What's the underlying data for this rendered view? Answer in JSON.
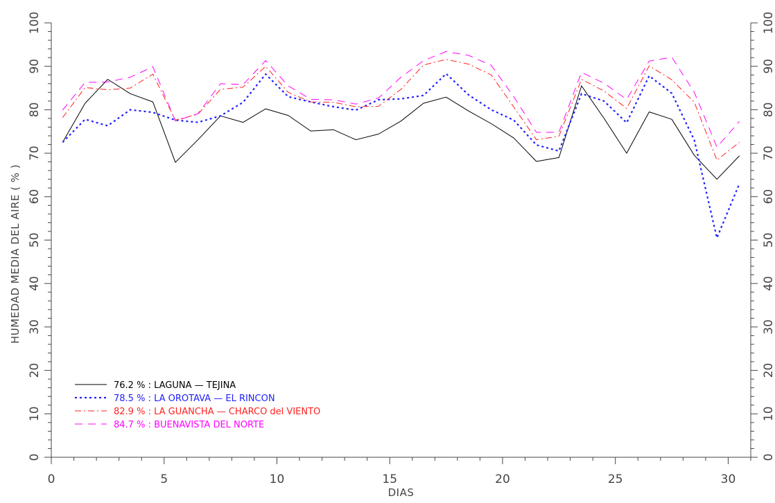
{
  "chart_data": {
    "type": "line",
    "title": "",
    "xlabel": "DIAS",
    "ylabel": "HUMEDAD MEDIA DEL AIRE ( % )",
    "xlim": [
      0,
      31
    ],
    "ylim": [
      0,
      100
    ],
    "xticks": [
      0,
      5,
      10,
      15,
      20,
      25,
      30
    ],
    "yticks": [
      0,
      10,
      20,
      30,
      40,
      50,
      60,
      70,
      80,
      90,
      100
    ],
    "x": [
      0.5,
      1.5,
      2.5,
      3.5,
      4.5,
      5.5,
      6.5,
      7.5,
      8.5,
      9.5,
      10.5,
      11.5,
      12.5,
      13.5,
      14.5,
      15.5,
      16.5,
      17.5,
      18.5,
      19.5,
      20.5,
      21.5,
      22.5,
      23.5,
      24.5,
      25.5,
      26.5,
      27.5,
      28.5,
      29.5,
      30.5
    ],
    "grid": false,
    "legend_position": "bottom-left",
    "series": [
      {
        "name": "LAGUNA — TEJINA",
        "mean_label": "76.2 %",
        "color": "#000000",
        "line_style": "solid",
        "values": [
          72.5,
          81.5,
          87.0,
          83.7,
          81.8,
          67.9,
          73.1,
          78.6,
          77.1,
          80.2,
          78.7,
          75.1,
          75.4,
          73.1,
          74.4,
          77.4,
          81.5,
          82.9,
          79.7,
          76.8,
          73.5,
          68.1,
          69.0,
          85.5,
          78.0,
          70.0,
          79.5,
          77.8,
          69.5,
          64.0,
          69.4
        ]
      },
      {
        "name": "LA OROTAVA — EL RINCON",
        "mean_label": "78.5 %",
        "color": "#2020ff",
        "line_style": "dotted",
        "values": [
          72.5,
          77.8,
          76.3,
          80.0,
          79.4,
          77.6,
          77.1,
          78.6,
          81.7,
          88.2,
          83.0,
          81.8,
          80.7,
          79.9,
          82.3,
          82.5,
          83.3,
          88.3,
          83.4,
          80.0,
          77.6,
          71.9,
          70.5,
          83.7,
          82.0,
          77.0,
          87.8,
          83.8,
          73.0,
          50.5,
          63.0
        ]
      },
      {
        "name": "LA GUANCHA — CHARCO del VIENTO",
        "mean_label": "82.9 %",
        "color": "#ff2020",
        "line_style": "dashdot",
        "values": [
          78.2,
          85.1,
          84.6,
          85.0,
          88.2,
          77.6,
          79.0,
          84.7,
          85.2,
          90.0,
          84.0,
          81.8,
          81.7,
          80.7,
          80.8,
          84.7,
          90.3,
          91.6,
          90.5,
          88.0,
          80.6,
          73.1,
          73.9,
          87.0,
          84.3,
          80.3,
          90.1,
          86.9,
          81.7,
          68.4,
          72.5
        ]
      },
      {
        "name": "BUENAVISTA DEL NORTE",
        "mean_label": "84.7 %",
        "color": "#ff00ff",
        "line_style": "dashed",
        "values": [
          79.9,
          86.3,
          86.4,
          87.5,
          89.9,
          77.4,
          79.1,
          86.0,
          85.8,
          91.3,
          85.5,
          82.4,
          82.3,
          81.3,
          82.7,
          87.5,
          91.3,
          93.4,
          92.5,
          90.2,
          83.0,
          74.8,
          74.8,
          88.6,
          86.1,
          82.4,
          91.2,
          92.1,
          84.0,
          71.4,
          77.3
        ]
      }
    ]
  }
}
